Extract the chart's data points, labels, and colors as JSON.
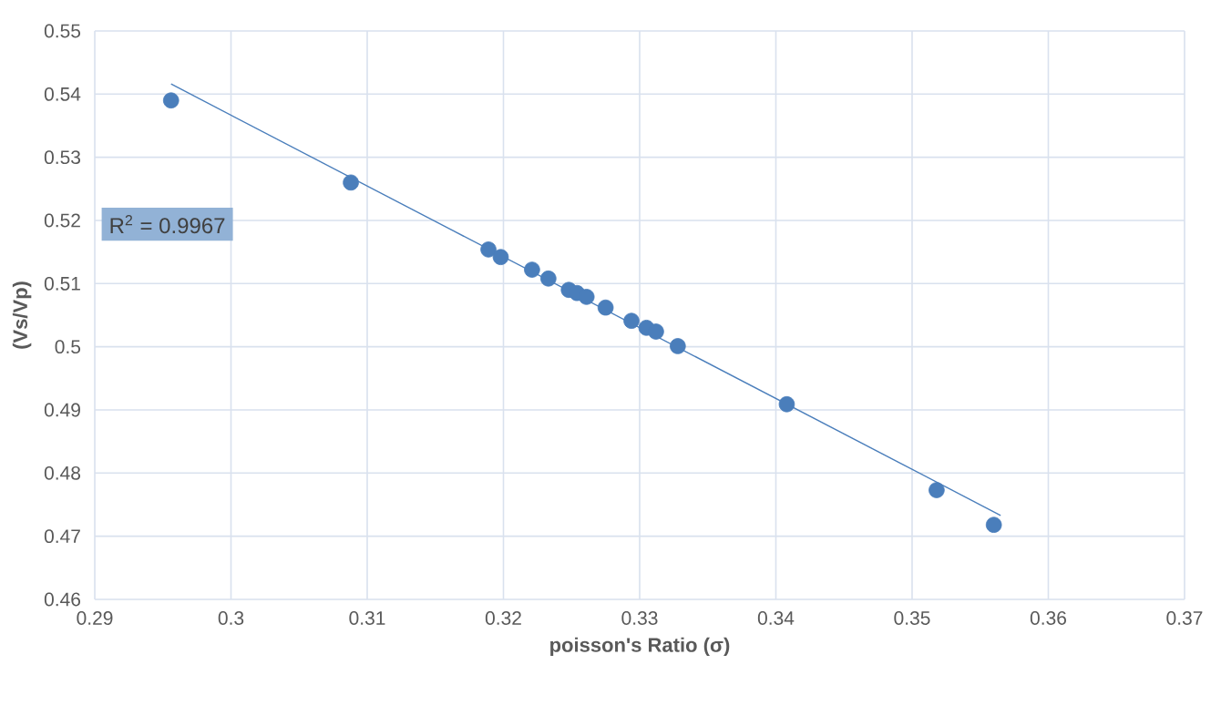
{
  "chart_data": {
    "type": "scatter",
    "xlabel": "poisson's Ratio (σ)",
    "ylabel": "(Vs/Vp)",
    "x": [
      0.2956,
      0.3088,
      0.3189,
      0.3198,
      0.3221,
      0.3233,
      0.3248,
      0.3254,
      0.3261,
      0.3275,
      0.3294,
      0.3305,
      0.3312,
      0.3328,
      0.3408,
      0.3518,
      0.356
    ],
    "series": [
      {
        "color": "#4a7ebb",
        "marker": "circle",
        "values": [
          0.539,
          0.526,
          0.5154,
          0.5142,
          0.5122,
          0.5108,
          0.509,
          0.5085,
          0.5079,
          0.5062,
          0.5041,
          0.503,
          0.5024,
          0.5001,
          0.4909,
          0.4773,
          0.4718
        ]
      },
      {
        "type": "line",
        "marker": "none",
        "color": "#4a7ebb",
        "x": [
          0.2956,
          0.3565
        ],
        "values": [
          0.5416,
          0.4733
        ]
      }
    ],
    "annotations": [
      "R$^{2}$ = 0.9967"
    ],
    "xlim": [
      0.29,
      0.37
    ],
    "xticks": [
      0.29,
      0.3,
      0.31,
      0.32,
      0.33,
      0.34,
      0.35,
      0.36,
      0.37
    ],
    "ylim": [
      0.46,
      0.55
    ],
    "yticks": [
      0.46,
      0.47,
      0.48,
      0.49,
      0.5,
      0.51,
      0.52,
      0.53,
      0.54,
      0.55
    ],
    "grid": true
  }
}
